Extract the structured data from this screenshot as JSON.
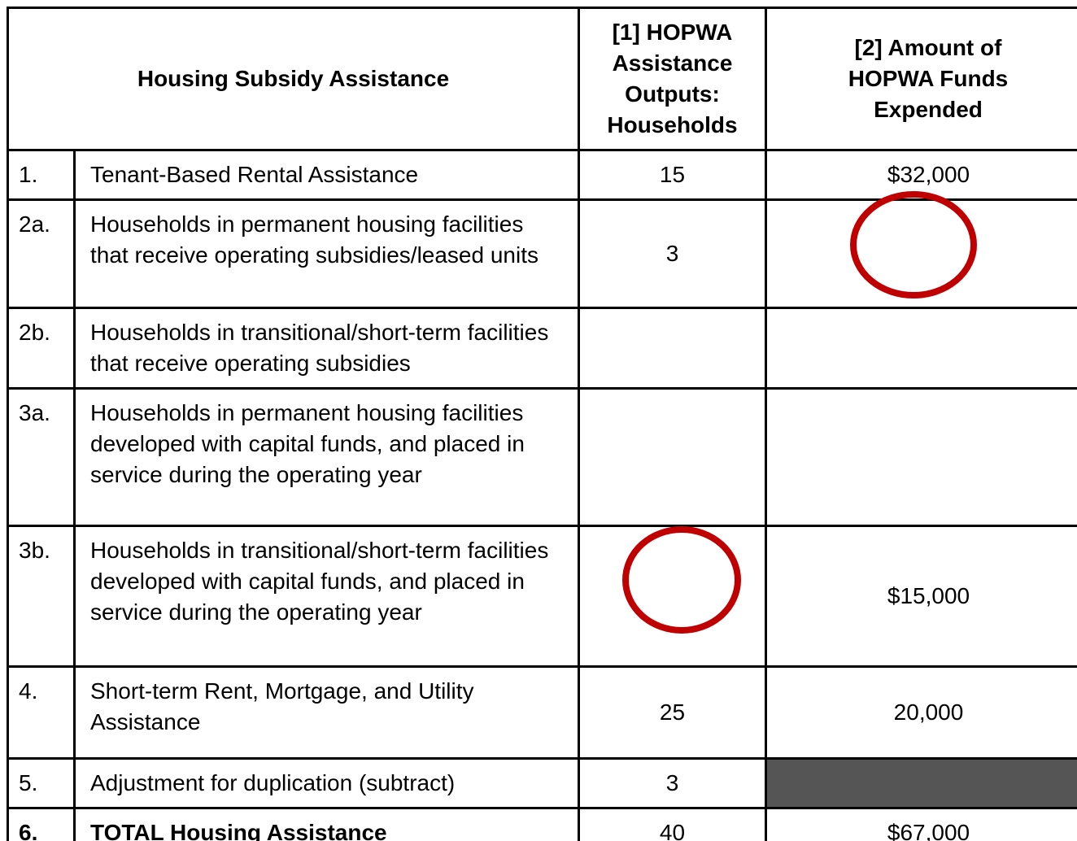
{
  "table": {
    "header": [
      "Housing Subsidy Assistance",
      "[1] HOPWA Assistance Outputs: Households",
      "[2] Amount of HOPWA Funds Expended"
    ],
    "rows": [
      [
        "1.",
        "Tenant-Based Rental Assistance",
        15,
        "$32,000"
      ],
      [
        "2a.",
        "Households in permanent housing facilities that receive operating subsidies/leased units",
        3,
        null
      ],
      [
        "2b.",
        "Households in transitional/short-term facilities that receive operating subsidies",
        null,
        null
      ],
      [
        "3a.",
        "Households in permanent housing facilities developed with capital funds, and placed in service during the operating year",
        null,
        null
      ],
      [
        "3b.",
        "Households in transitional/short-term facilities developed with capital funds, and placed in service during the operating year",
        null,
        "$15,000"
      ],
      [
        "4.",
        "Short-term Rent, Mortgage, and Utility Assistance",
        25,
        "20,000"
      ],
      [
        "5.",
        "Adjustment for duplication (subtract)",
        3,
        null
      ],
      [
        "6.",
        "TOTAL Housing Assistance",
        40,
        "$67,000"
      ]
    ]
  }
}
